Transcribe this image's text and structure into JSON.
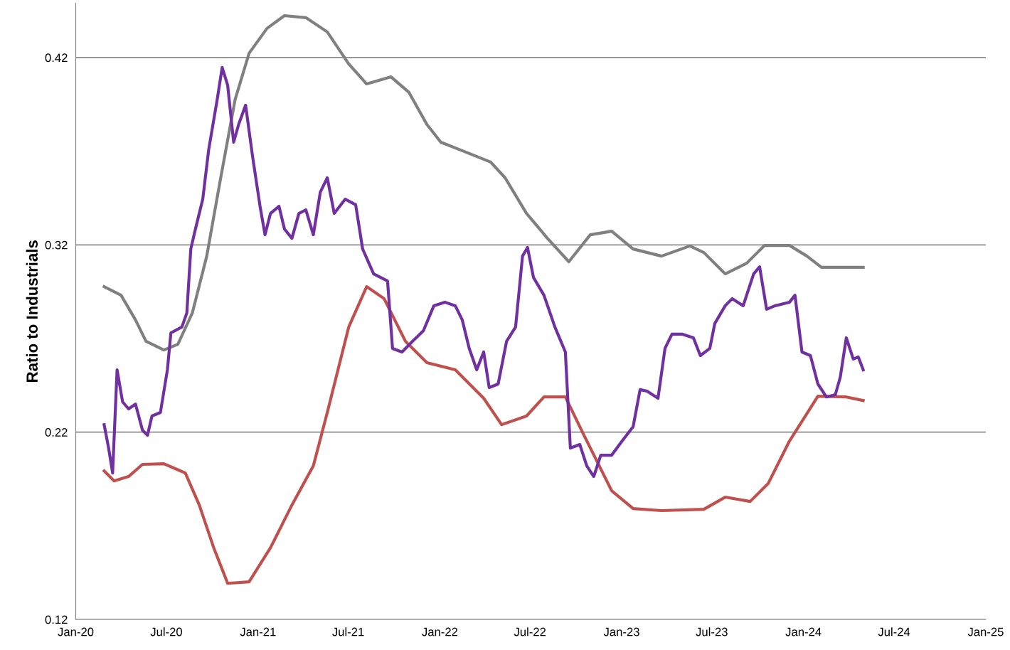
{
  "chart_data": {
    "type": "line",
    "ylabel": "Ratio to Industrials",
    "grid": "y",
    "line_style": "solid",
    "marker": "none",
    "xlim": [
      "2020-01-01",
      "2025-01-01"
    ],
    "xticks": [
      {
        "value": "2020-01-01",
        "label": "Jan-20"
      },
      {
        "value": "2020-07-01",
        "label": "Jul-20"
      },
      {
        "value": "2021-01-01",
        "label": "Jan-21"
      },
      {
        "value": "2021-07-01",
        "label": "Jul-21"
      },
      {
        "value": "2022-01-01",
        "label": "Jan-22"
      },
      {
        "value": "2022-07-01",
        "label": "Jul-22"
      },
      {
        "value": "2023-01-01",
        "label": "Jan-23"
      },
      {
        "value": "2023-07-01",
        "label": "Jul-23"
      },
      {
        "value": "2024-01-01",
        "label": "Jan-24"
      },
      {
        "value": "2024-07-01",
        "label": "Jul-24"
      },
      {
        "value": "2025-01-01",
        "label": "Jan-25"
      }
    ],
    "ylim": [
      0.12,
      0.449
    ],
    "yticks": [
      0.12,
      0.22,
      0.32,
      0.42
    ],
    "series": [
      {
        "color": "#808080",
        "x": [
          "2020-02-27",
          "2020-04-01",
          "2020-04-30",
          "2020-05-21",
          "2020-06-26",
          "2020-07-24",
          "2020-08-22",
          "2020-09-20",
          "2020-10-18",
          "2020-11-16",
          "2020-12-14",
          "2021-01-19",
          "2021-02-23",
          "2021-04-07",
          "2021-05-20",
          "2021-07-02",
          "2021-08-07",
          "2021-09-25",
          "2021-10-31",
          "2021-12-06",
          "2022-01-03",
          "2022-02-15",
          "2022-04-13",
          "2022-05-12",
          "2022-06-24",
          "2022-08-05",
          "2022-09-17",
          "2022-10-30",
          "2022-12-12",
          "2023-01-24",
          "2023-03-22",
          "2023-05-18",
          "2023-06-15",
          "2023-07-28",
          "2023-09-09",
          "2023-10-15",
          "2023-12-04",
          "2024-01-08",
          "2024-02-06",
          "2024-04-30"
        ],
        "values": [
          0.2977,
          0.2931,
          0.2799,
          0.2685,
          0.2639,
          0.2669,
          0.2836,
          0.314,
          0.3558,
          0.3976,
          0.4223,
          0.4356,
          0.4424,
          0.4413,
          0.4337,
          0.4166,
          0.4059,
          0.4097,
          0.4014,
          0.3843,
          0.3748,
          0.3703,
          0.3642,
          0.3558,
          0.3368,
          0.3235,
          0.311,
          0.3254,
          0.3273,
          0.3178,
          0.314,
          0.3194,
          0.3159,
          0.3045,
          0.3102,
          0.3197,
          0.3197,
          0.314,
          0.308,
          0.308
        ]
      },
      {
        "color": "#c0504d",
        "x": [
          "2020-02-27",
          "2020-03-18",
          "2020-04-16",
          "2020-05-14",
          "2020-06-26",
          "2020-08-08",
          "2020-09-05",
          "2020-10-04",
          "2020-11-01",
          "2020-12-14",
          "2021-01-26",
          "2021-03-10",
          "2021-04-22",
          "2021-05-20",
          "2021-07-02",
          "2021-08-07",
          "2021-09-11",
          "2021-10-24",
          "2021-12-06",
          "2022-02-01",
          "2022-03-30",
          "2022-05-05",
          "2022-06-24",
          "2022-07-29",
          "2022-09-10",
          "2022-10-16",
          "2022-12-12",
          "2023-01-24",
          "2023-03-22",
          "2023-06-15",
          "2023-07-28",
          "2023-09-16",
          "2023-10-22",
          "2023-12-04",
          "2024-01-30",
          "2024-03-27",
          "2024-04-30"
        ],
        "values": [
          0.1993,
          0.194,
          0.1963,
          0.2028,
          0.2031,
          0.1982,
          0.1811,
          0.1583,
          0.1393,
          0.1401,
          0.1583,
          0.1811,
          0.202,
          0.2305,
          0.2761,
          0.2977,
          0.2913,
          0.2685,
          0.2571,
          0.2533,
          0.2381,
          0.224,
          0.2286,
          0.2388,
          0.2388,
          0.2191,
          0.1887,
          0.1792,
          0.1781,
          0.1788,
          0.1853,
          0.183,
          0.1925,
          0.2153,
          0.2392,
          0.2388,
          0.2369
        ]
      },
      {
        "color": "#7030a0",
        "x": [
          "2020-02-27",
          "2020-03-07",
          "2020-03-15",
          "2020-03-24",
          "2020-04-04",
          "2020-04-16",
          "2020-04-30",
          "2020-05-14",
          "2020-05-24",
          "2020-06-02",
          "2020-06-19",
          "2020-07-03",
          "2020-07-10",
          "2020-08-01",
          "2020-08-11",
          "2020-08-19",
          "2020-08-29",
          "2020-09-12",
          "2020-09-24",
          "2020-10-11",
          "2020-10-21",
          "2020-11-01",
          "2020-11-13",
          "2020-11-23",
          "2020-12-07",
          "2020-12-21",
          "2021-01-05",
          "2021-01-15",
          "2021-01-26",
          "2021-02-12",
          "2021-02-23",
          "2021-03-10",
          "2021-03-24",
          "2021-04-07",
          "2021-04-22",
          "2021-05-06",
          "2021-05-20",
          "2021-06-03",
          "2021-06-25",
          "2021-07-16",
          "2021-07-30",
          "2021-08-21",
          "2021-09-18",
          "2021-09-28",
          "2021-10-17",
          "2021-11-07",
          "2021-11-29",
          "2021-12-20",
          "2022-01-11",
          "2022-02-01",
          "2022-02-15",
          "2022-03-01",
          "2022-03-16",
          "2022-03-30",
          "2022-04-10",
          "2022-04-28",
          "2022-05-15",
          "2022-06-02",
          "2022-06-16",
          "2022-06-26",
          "2022-07-08",
          "2022-07-29",
          "2022-08-20",
          "2022-09-10",
          "2022-09-20",
          "2022-10-09",
          "2022-10-23",
          "2022-11-06",
          "2022-11-20",
          "2022-12-12",
          "2023-01-02",
          "2023-01-24",
          "2023-02-07",
          "2023-02-21",
          "2023-03-15",
          "2023-03-29",
          "2023-04-12",
          "2023-05-03",
          "2023-05-25",
          "2023-06-08",
          "2023-06-27",
          "2023-07-07",
          "2023-07-28",
          "2023-08-11",
          "2023-09-02",
          "2023-09-23",
          "2023-10-05",
          "2023-10-19",
          "2023-11-05",
          "2023-12-04",
          "2023-12-15",
          "2023-12-29",
          "2024-01-15",
          "2024-01-30",
          "2024-02-16",
          "2024-03-05",
          "2024-03-15",
          "2024-03-27",
          "2024-04-10",
          "2024-04-20",
          "2024-04-30"
        ],
        "values": [
          0.224,
          0.2115,
          0.1982,
          0.2533,
          0.2362,
          0.2324,
          0.235,
          0.221,
          0.2183,
          0.2286,
          0.2305,
          0.2533,
          0.273,
          0.2761,
          0.2836,
          0.3178,
          0.3292,
          0.3444,
          0.371,
          0.3976,
          0.4147,
          0.4052,
          0.3748,
          0.3843,
          0.3946,
          0.3672,
          0.3406,
          0.3254,
          0.3368,
          0.3406,
          0.3285,
          0.3235,
          0.3368,
          0.3387,
          0.3254,
          0.3482,
          0.3558,
          0.3368,
          0.3444,
          0.3414,
          0.3178,
          0.3045,
          0.3007,
          0.2647,
          0.2628,
          0.2685,
          0.2742,
          0.2875,
          0.2894,
          0.2875,
          0.2799,
          0.2647,
          0.2533,
          0.2628,
          0.2438,
          0.2457,
          0.2685,
          0.2761,
          0.314,
          0.3186,
          0.3026,
          0.2931,
          0.2761,
          0.2628,
          0.2115,
          0.2134,
          0.202,
          0.1963,
          0.2077,
          0.2077,
          0.2153,
          0.2229,
          0.2427,
          0.2419,
          0.2381,
          0.2647,
          0.2723,
          0.2723,
          0.2704,
          0.2609,
          0.2647,
          0.278,
          0.2875,
          0.2913,
          0.2875,
          0.3045,
          0.3083,
          0.2856,
          0.2875,
          0.2894,
          0.2931,
          0.2628,
          0.2609,
          0.2457,
          0.2388,
          0.24,
          0.2495,
          0.2704,
          0.259,
          0.2602,
          0.2533
        ]
      }
    ]
  }
}
